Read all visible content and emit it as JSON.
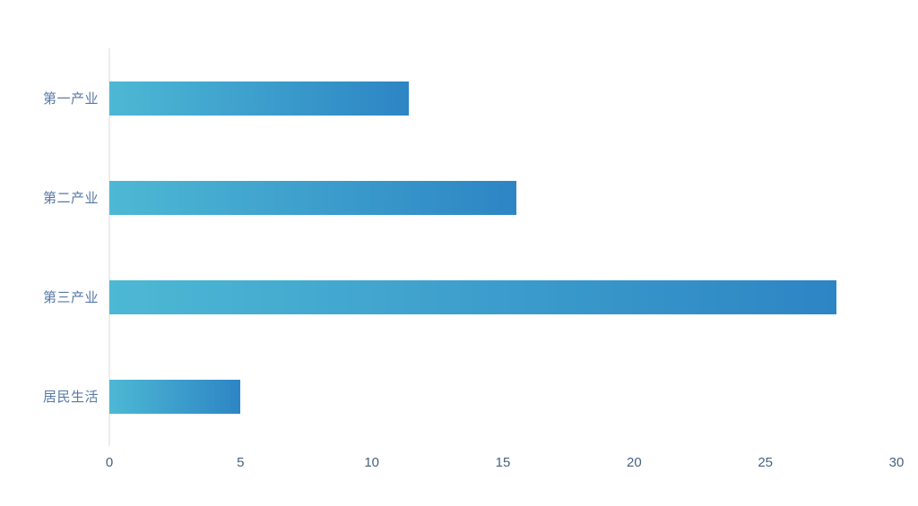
{
  "chart_data": {
    "type": "bar",
    "orientation": "horizontal",
    "title": "",
    "xlabel": "",
    "ylabel": "",
    "categories": [
      "第一产业",
      "第二产业",
      "第三产业",
      "居民生活"
    ],
    "values": [
      11.4,
      15.5,
      27.7,
      5
    ],
    "xlim": [
      0,
      30
    ],
    "x_ticks": [
      "0",
      "5",
      "10",
      "15",
      "20",
      "25",
      "30"
    ],
    "grid": false,
    "legend": false,
    "colors": {
      "bar_gradient_start": "#4db8d4",
      "bar_gradient_end": "#2d85c4",
      "category_label": "#5779a6",
      "tick_label": "#47617f",
      "axis_line": "#ededed",
      "background": "#ffffff"
    }
  }
}
